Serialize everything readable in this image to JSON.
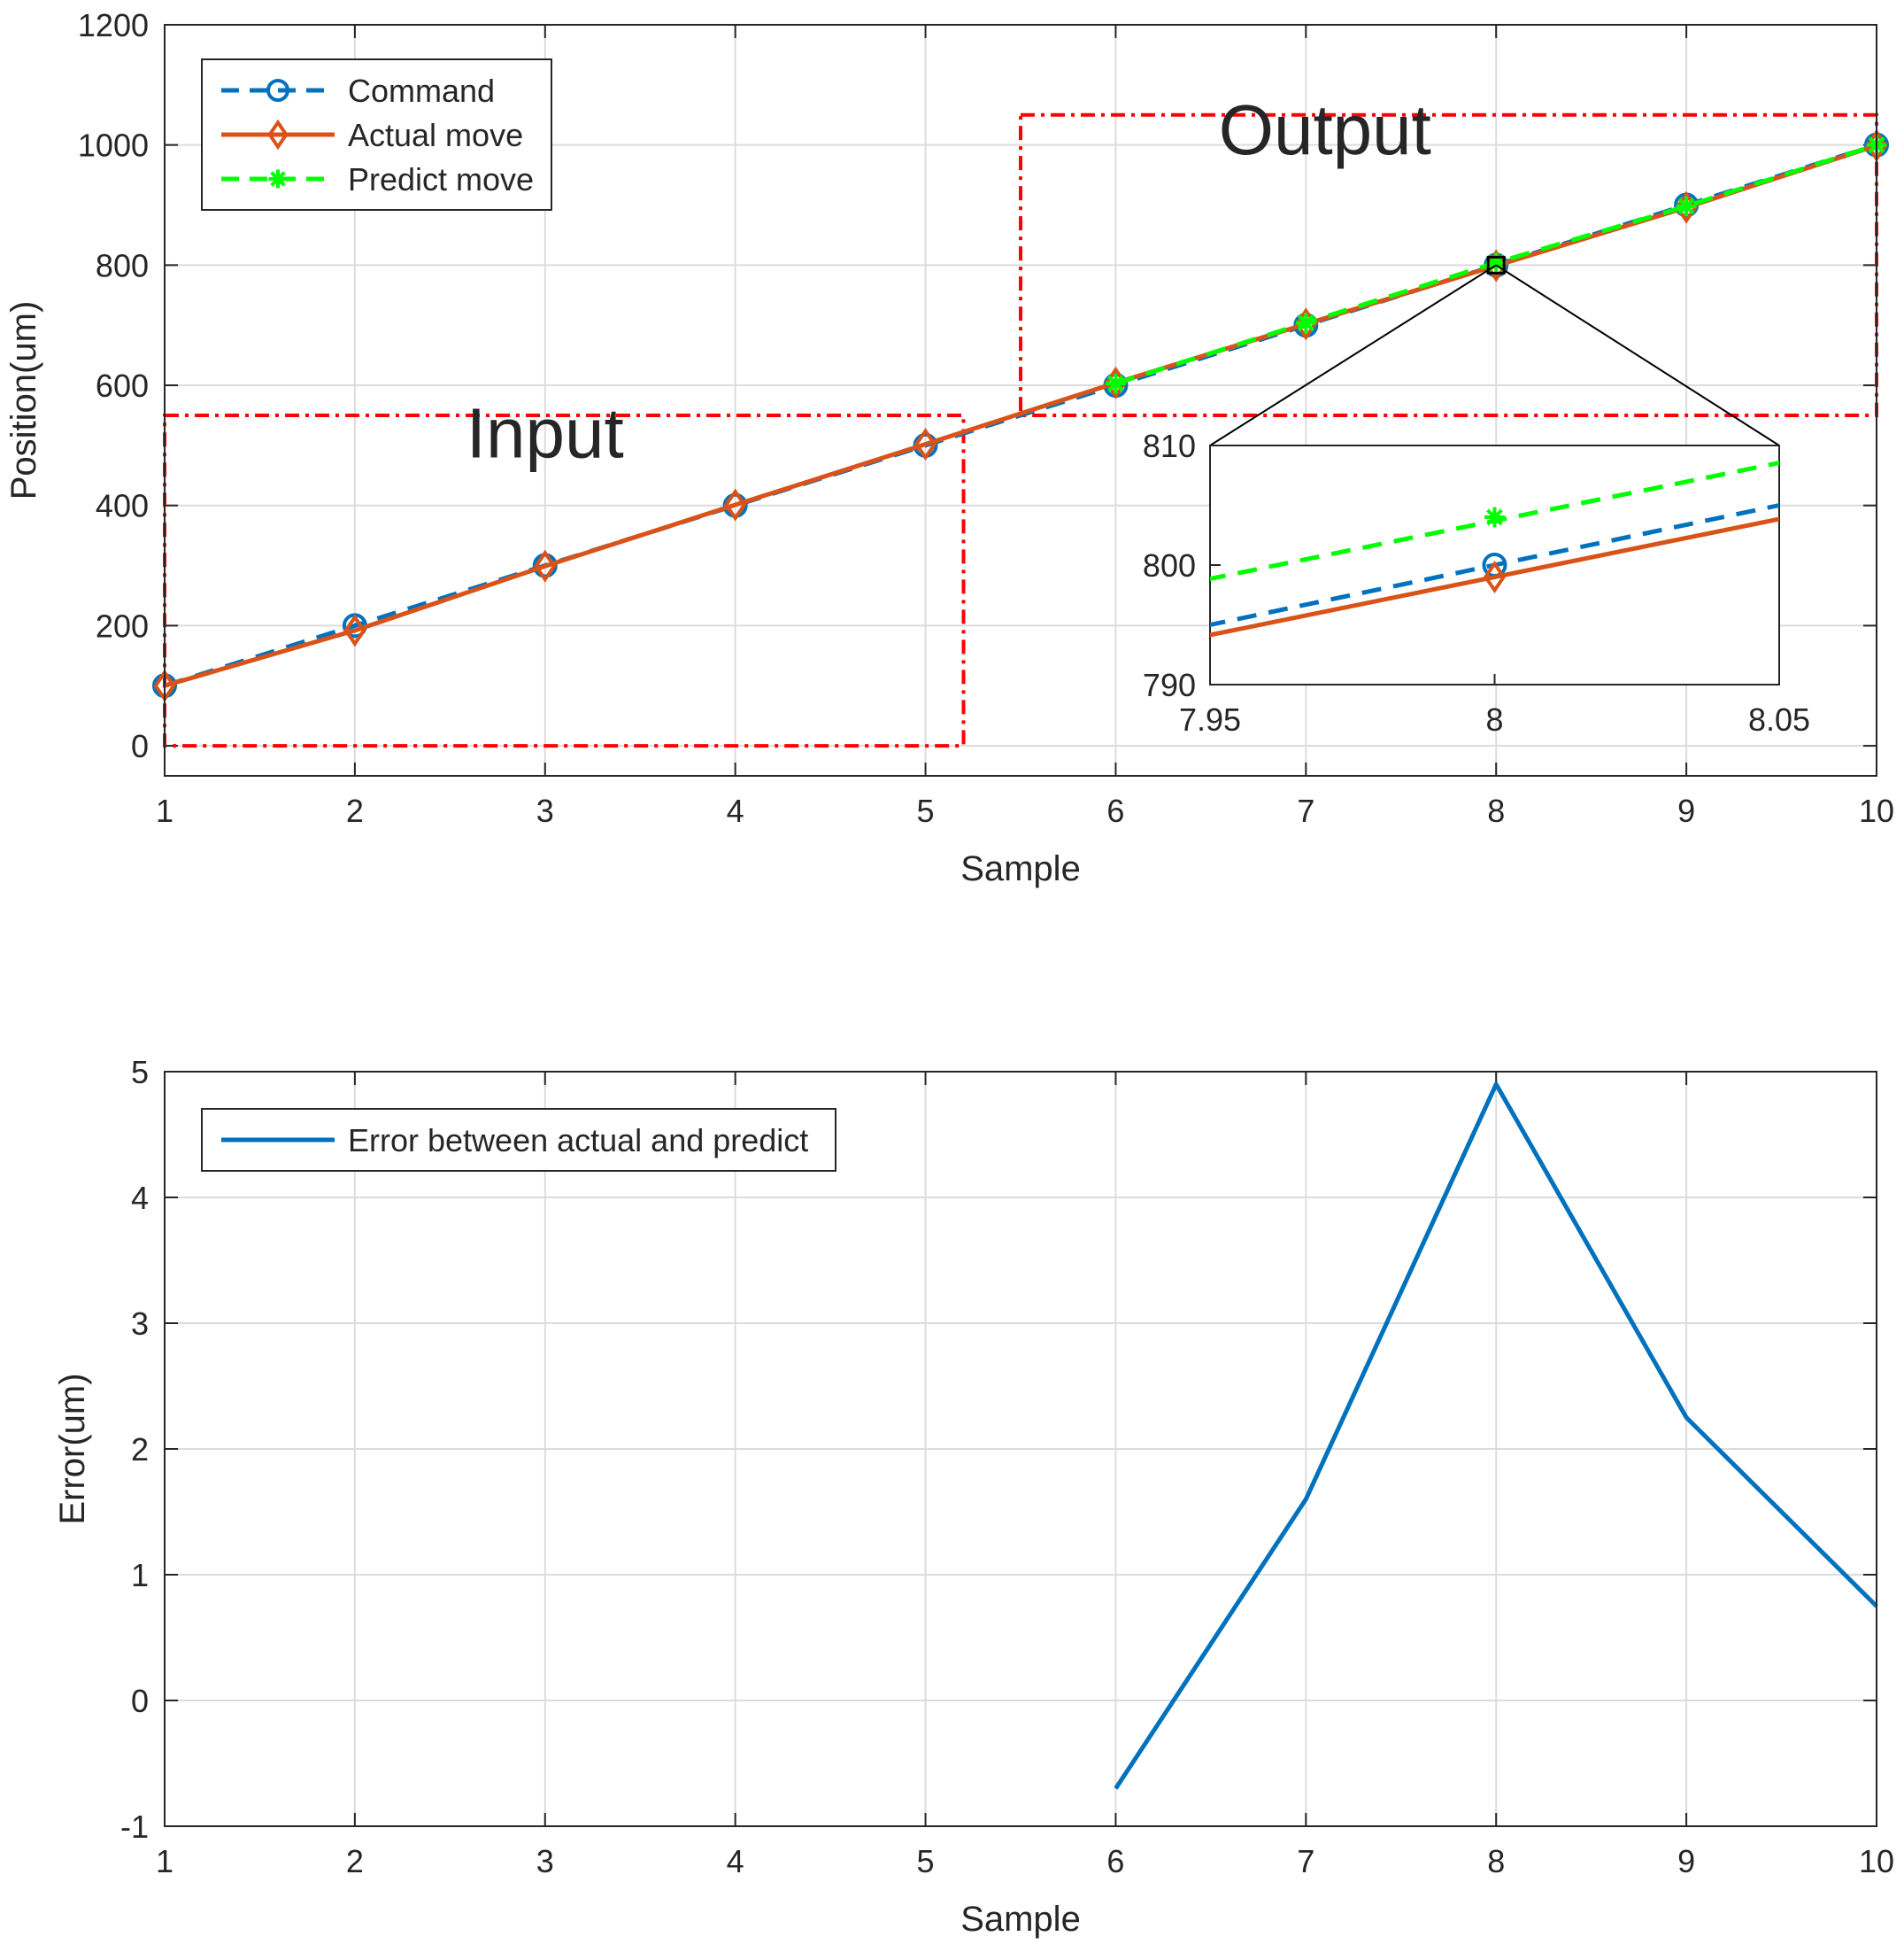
{
  "chart_data": [
    {
      "type": "line",
      "title": "",
      "xlabel": "Sample",
      "ylabel": "Position(um)",
      "xlim": [
        1,
        10
      ],
      "ylim": [
        -50,
        1200
      ],
      "xticks": [
        1,
        2,
        3,
        4,
        5,
        6,
        7,
        8,
        9,
        10
      ],
      "yticks": [
        0,
        200,
        400,
        600,
        800,
        1000,
        1200
      ],
      "grid": true,
      "legend_position": "top-left",
      "series": [
        {
          "name": "Command",
          "color": "#0072BD",
          "line_style": "dashed",
          "marker": "circle",
          "x": [
            1,
            2,
            3,
            4,
            5,
            6,
            7,
            8,
            9,
            10
          ],
          "y": [
            100,
            200,
            300,
            400,
            500,
            600,
            700,
            800,
            900,
            1000
          ]
        },
        {
          "name": "Actual move",
          "color": "#D95319",
          "line_style": "solid",
          "marker": "diamond",
          "x": [
            1,
            2,
            3,
            4,
            5,
            6,
            7,
            8,
            9,
            10
          ],
          "y": [
            100,
            192,
            299,
            401,
            502,
            604,
            702,
            799,
            896,
            999
          ]
        },
        {
          "name": "Predict move",
          "color": "#00FF00",
          "line_style": "dashed",
          "marker": "asterisk",
          "x": [
            6,
            7,
            8,
            9,
            10
          ],
          "y": [
            603,
            704,
            804,
            898,
            1000
          ]
        }
      ],
      "annotations": [
        {
          "label": "Input",
          "color": "#FF0000",
          "box_x": [
            1,
            5.2
          ],
          "box_y": [
            0,
            550
          ]
        },
        {
          "label": "Output",
          "color": "#FF0000",
          "box_x": [
            5.5,
            10
          ],
          "box_y": [
            550,
            1050
          ]
        }
      ],
      "inset": {
        "xlim": [
          7.95,
          8.05
        ],
        "ylim": [
          790,
          810
        ],
        "xticks": [
          "7.95",
          "8",
          "8.05"
        ],
        "yticks": [
          "790",
          "800",
          "810"
        ],
        "source_point": [
          8,
          800
        ]
      }
    },
    {
      "type": "line",
      "title": "",
      "xlabel": "Sample",
      "ylabel": "Error(um)",
      "xlim": [
        1,
        10
      ],
      "ylim": [
        -1,
        5
      ],
      "xticks": [
        1,
        2,
        3,
        4,
        5,
        6,
        7,
        8,
        9,
        10
      ],
      "yticks": [
        -1,
        0,
        1,
        2,
        3,
        4,
        5
      ],
      "grid": true,
      "legend_position": "top-left",
      "series": [
        {
          "name": "Error between actual and predict",
          "color": "#0072BD",
          "line_style": "solid",
          "marker": "none",
          "x": [
            6,
            7,
            8,
            9,
            10
          ],
          "y": [
            -0.7,
            1.6,
            4.9,
            2.25,
            0.75
          ]
        }
      ]
    }
  ]
}
